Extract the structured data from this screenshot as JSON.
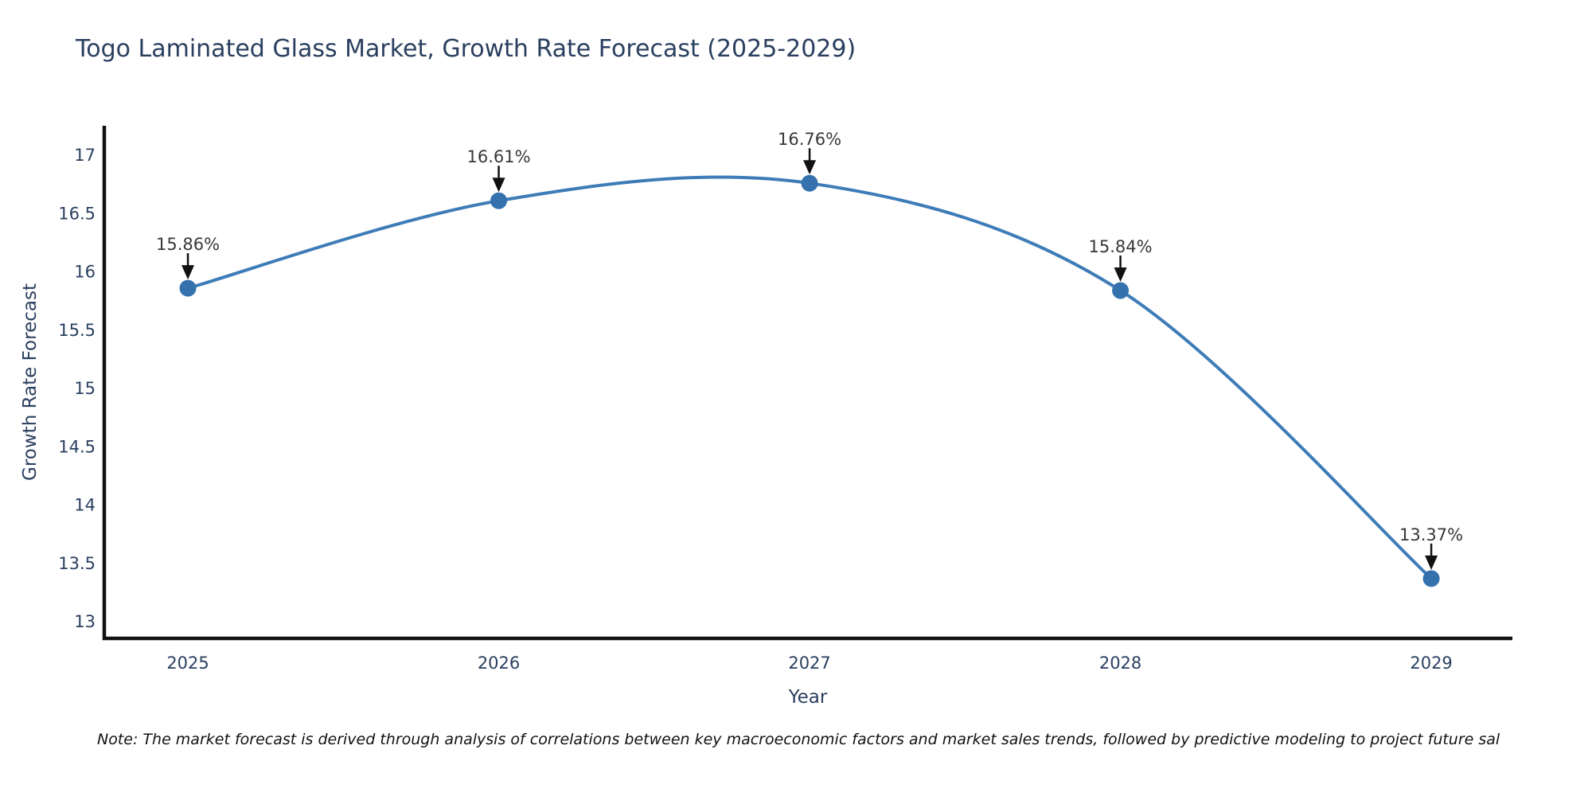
{
  "title": "Togo Laminated Glass Market, Growth Rate Forecast (2025-2029)",
  "note": "Note: The market forecast is derived through analysis of correlations between key macroeconomic factors and market sales trends, followed by predictive modeling to project future sal",
  "chart_data": {
    "type": "line",
    "title": "Togo Laminated Glass Market, Growth Rate Forecast (2025-2029)",
    "xlabel": "Year",
    "ylabel": "Growth Rate Forecast",
    "categories": [
      2025,
      2026,
      2027,
      2028,
      2029
    ],
    "series": [
      {
        "name": "Growth Rate Forecast",
        "values": [
          15.86,
          16.61,
          16.76,
          15.84,
          13.37
        ]
      }
    ],
    "point_labels": [
      "15.86%",
      "16.61%",
      "16.76%",
      "15.84%",
      "13.37%"
    ],
    "xtick_labels": [
      "2025",
      "2026",
      "2027",
      "2028",
      "2029"
    ],
    "ytick_values": [
      13,
      13.5,
      14,
      14.5,
      15,
      15.5,
      16,
      16.5,
      17
    ],
    "ytick_labels": [
      "13",
      "13.5",
      "14",
      "14.5",
      "15",
      "15.5",
      "16",
      "16.5",
      "17"
    ],
    "xlim": [
      2024.731,
      2029.261
    ],
    "ylim": [
      12.857,
      17.253
    ],
    "grid": false,
    "legend": false,
    "line_shape": "spline",
    "colors": {
      "line": "#3e7cb8",
      "marker": "#3571ad",
      "axis": "#111111",
      "axis_text": "#2a3f5f",
      "annotation_text": "#383838",
      "arrow": "#111111"
    }
  }
}
